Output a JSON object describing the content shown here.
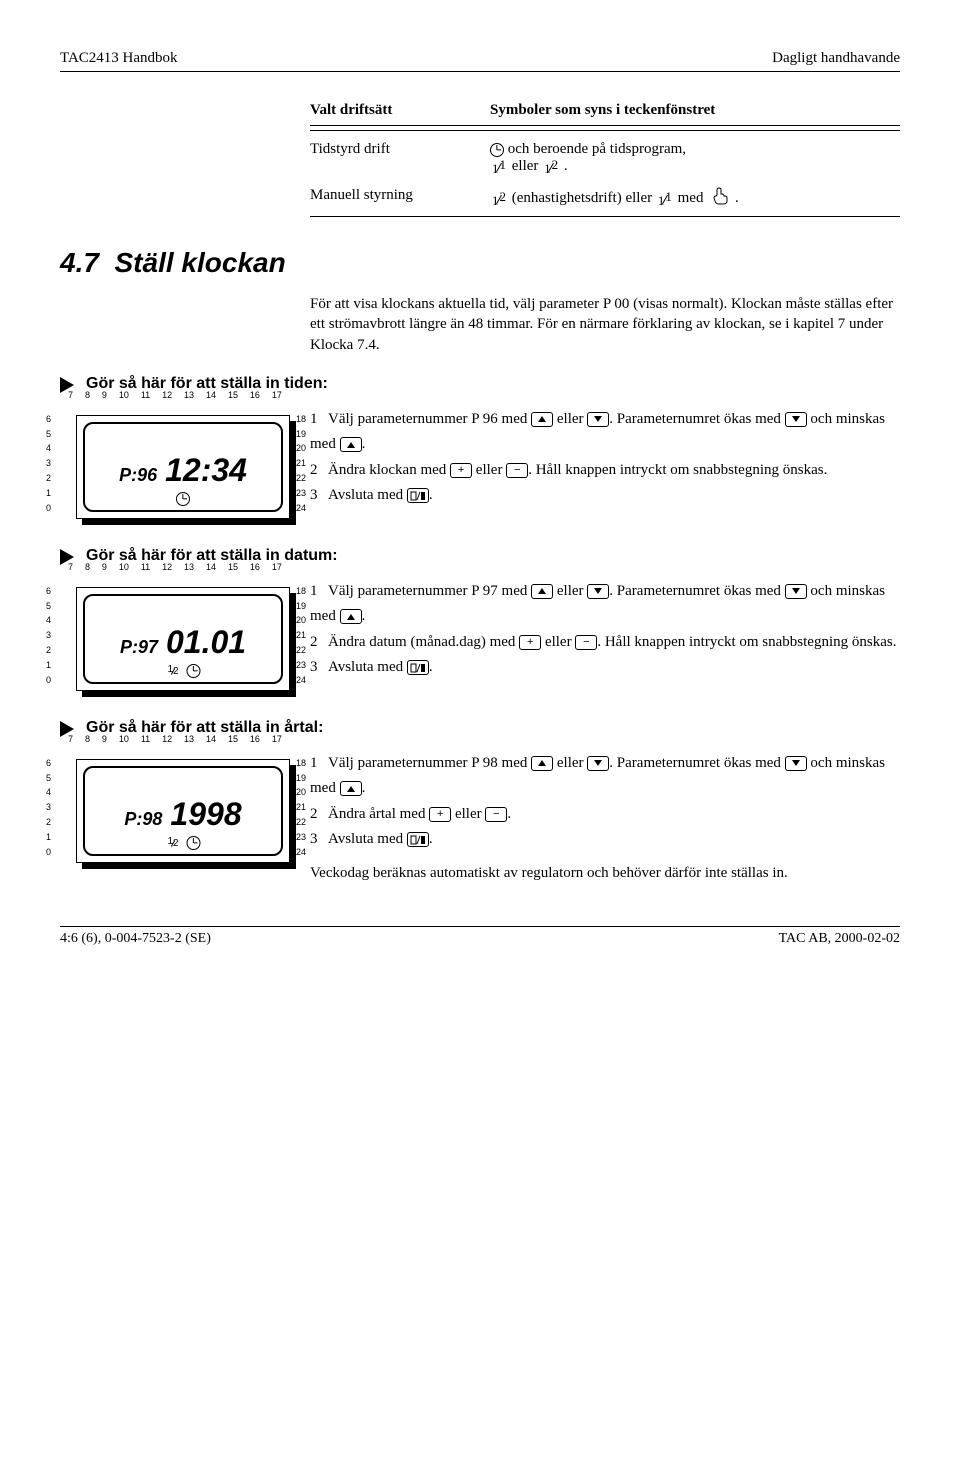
{
  "header": {
    "left": "TAC2413 Handbok",
    "right": "Dagligt handhavande"
  },
  "modes_table": {
    "header_col1": "Valt driftsätt",
    "header_col2": "Symboler som syns i teckenfönstret",
    "rows": [
      {
        "mode": "Tidstyrd drift",
        "desc_pre": "",
        "desc_mid": "och beroende på tidsprogram,",
        "desc_tail": "eller",
        "desc_end": "."
      },
      {
        "mode": "Manuell styrning",
        "desc_pre": "",
        "desc_mid": "(enhastighetsdrift) eller",
        "desc_tail": "med",
        "desc_end": "."
      }
    ]
  },
  "section_number": "4.7",
  "section_title": "Ställ klockan",
  "intro_para": "För att visa klockans aktuella tid, välj parameter P 00 (visas normalt). Klockan måste ställas efter ett strömavbrott längre än 48 timmar. För en närmare förklaring av klockan, se i kapitel 7 under Klocka 7.4.",
  "blocks": [
    {
      "heading": "Gör så här för att ställa in tiden:",
      "lcd": {
        "param": "P:96",
        "value": "12:34",
        "show_half": false
      },
      "steps": [
        {
          "n": "1",
          "pre": "Välj parameternummer P 96 med",
          "mid": "eller",
          "post1": ". Parameternumret ökas med",
          "post2": "och minskas med",
          "end": "."
        },
        {
          "n": "2",
          "pre": "Ändra klockan med",
          "mid": "eller",
          "post1": ". Håll knappen intryckt om snabbstegning önskas.",
          "post2": "",
          "end": ""
        },
        {
          "n": "3",
          "pre": "Avsluta med",
          "mid": "",
          "post1": ".",
          "post2": "",
          "end": ""
        }
      ]
    },
    {
      "heading": "Gör så här för att ställa in datum:",
      "lcd": {
        "param": "P:97",
        "value": "01.01",
        "show_half": true
      },
      "steps": [
        {
          "n": "1",
          "pre": "Välj parameternummer P 97 med",
          "mid": "eller",
          "post1": ". Parameternumret ökas med",
          "post2": "och minskas med",
          "end": "."
        },
        {
          "n": "2",
          "pre": "Ändra datum (månad.dag) med",
          "mid": "eller",
          "post1": ". Håll knappen intryckt om snabbstegning önskas.",
          "post2": "",
          "end": ""
        },
        {
          "n": "3",
          "pre": "Avsluta med",
          "mid": "",
          "post1": ".",
          "post2": "",
          "end": ""
        }
      ]
    },
    {
      "heading": "Gör så här för att ställa in årtal:",
      "lcd": {
        "param": "P:98",
        "value": "1998",
        "show_half": true
      },
      "steps": [
        {
          "n": "1",
          "pre": "Välj parameternummer P 98 med",
          "mid": "eller",
          "post1": ". Parameternumret ökas med",
          "post2": "och minskas med",
          "end": "."
        },
        {
          "n": "2",
          "pre": "Ändra årtal med",
          "mid": "eller",
          "post1": ".",
          "post2": "",
          "end": ""
        },
        {
          "n": "3",
          "pre": "Avsluta med",
          "mid": "",
          "post1": ".",
          "post2": "",
          "end": ""
        }
      ],
      "trailer": "Veckodag beräknas automatiskt av regulatorn och behöver därför inte ställas in."
    }
  ],
  "lcd_axes": {
    "top": [
      "7",
      "8",
      "9",
      "10",
      "11",
      "12",
      "13",
      "14",
      "15",
      "16",
      "17"
    ],
    "left": [
      "0",
      "1",
      "2",
      "3",
      "4",
      "5",
      "6"
    ],
    "right": [
      "18",
      "19",
      "20",
      "21",
      "22",
      "23",
      "24"
    ]
  },
  "footer": {
    "left": "4:6 (6), 0-004-7523-2 (SE)",
    "right": "TAC AB, 2000-02-02"
  }
}
